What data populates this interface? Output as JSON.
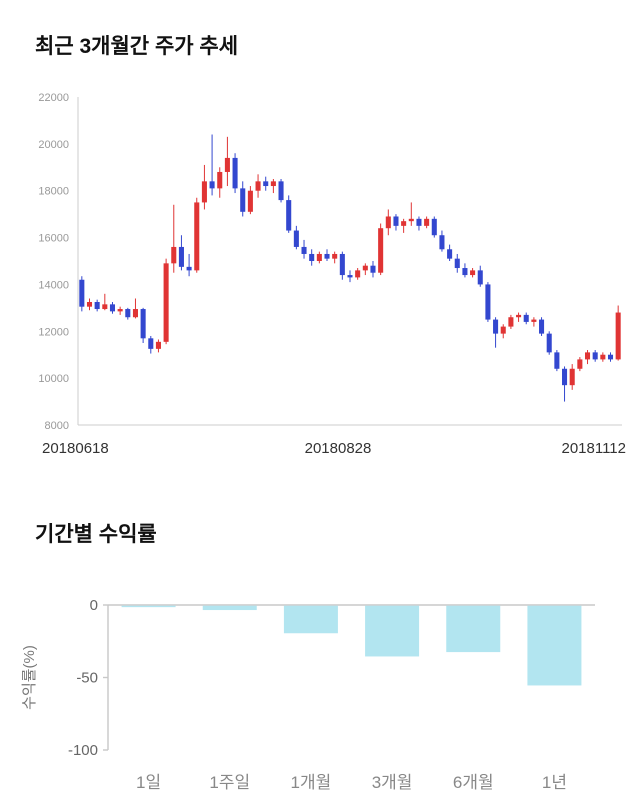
{
  "chart_data": [
    {
      "type": "candlestick",
      "title": "최근 3개월간 주가 추세",
      "ylim": [
        8000,
        22000
      ],
      "y_ticks": [
        22000,
        20000,
        18000,
        16000,
        14000,
        12000,
        10000,
        8000
      ],
      "x_tick_labels": [
        "20180618",
        "20180828",
        "20181112"
      ],
      "up_color": "#e03434",
      "down_color": "#3347cf",
      "axis_color": "#cccccc",
      "tick_text_color": "#999999",
      "date_text_color": "#333333",
      "candles": [
        [
          14200,
          14350,
          12850,
          13050
        ],
        [
          13050,
          13400,
          12900,
          13250
        ],
        [
          13250,
          13350,
          12850,
          12950
        ],
        [
          12950,
          13600,
          12900,
          13150
        ],
        [
          13150,
          13250,
          12750,
          12850
        ],
        [
          12850,
          13050,
          12700,
          12950
        ],
        [
          12950,
          13000,
          12500,
          12600
        ],
        [
          12600,
          13400,
          12550,
          12950
        ],
        [
          12950,
          13000,
          11500,
          11700
        ],
        [
          11700,
          11800,
          11050,
          11250
        ],
        [
          11250,
          11650,
          11100,
          11550
        ],
        [
          11550,
          15100,
          11450,
          14900
        ],
        [
          14900,
          17400,
          14500,
          15600
        ],
        [
          15600,
          16100,
          14600,
          14750
        ],
        [
          14750,
          15300,
          14350,
          14600
        ],
        [
          14600,
          17700,
          14500,
          17500
        ],
        [
          17500,
          19100,
          17200,
          18400
        ],
        [
          18400,
          20400,
          17800,
          18100
        ],
        [
          18100,
          19000,
          17700,
          18800
        ],
        [
          18800,
          20300,
          18200,
          19400
        ],
        [
          19400,
          19600,
          17900,
          18100
        ],
        [
          18100,
          18400,
          16900,
          17100
        ],
        [
          17100,
          18200,
          17000,
          18000
        ],
        [
          18000,
          18700,
          17700,
          18400
        ],
        [
          18400,
          18600,
          18000,
          18200
        ],
        [
          18200,
          18500,
          17900,
          18400
        ],
        [
          18400,
          18500,
          17500,
          17600
        ],
        [
          17600,
          17800,
          16200,
          16300
        ],
        [
          16300,
          16500,
          15500,
          15600
        ],
        [
          15600,
          15900,
          15100,
          15300
        ],
        [
          15300,
          15500,
          14800,
          15000
        ],
        [
          15000,
          15400,
          14900,
          15300
        ],
        [
          15300,
          15500,
          15000,
          15100
        ],
        [
          15100,
          15400,
          14900,
          15300
        ],
        [
          15300,
          15400,
          14200,
          14400
        ],
        [
          14400,
          14600,
          14100,
          14300
        ],
        [
          14300,
          14700,
          14200,
          14600
        ],
        [
          14600,
          14900,
          14400,
          14800
        ],
        [
          14800,
          15000,
          14300,
          14500
        ],
        [
          14500,
          16600,
          14400,
          16400
        ],
        [
          16400,
          17200,
          16100,
          16900
        ],
        [
          16900,
          17000,
          16300,
          16500
        ],
        [
          16500,
          16800,
          16200,
          16700
        ],
        [
          16700,
          17500,
          16500,
          16800
        ],
        [
          16800,
          16900,
          16300,
          16500
        ],
        [
          16500,
          16900,
          16400,
          16800
        ],
        [
          16800,
          16900,
          16000,
          16100
        ],
        [
          16100,
          16300,
          15400,
          15500
        ],
        [
          15500,
          15700,
          15000,
          15100
        ],
        [
          15100,
          15300,
          14500,
          14700
        ],
        [
          14700,
          14900,
          14300,
          14400
        ],
        [
          14400,
          14700,
          14300,
          14600
        ],
        [
          14600,
          14800,
          13900,
          14000
        ],
        [
          14000,
          14100,
          12400,
          12500
        ],
        [
          12500,
          12600,
          11300,
          11900
        ],
        [
          11900,
          12300,
          11700,
          12200
        ],
        [
          12200,
          12700,
          12100,
          12600
        ],
        [
          12600,
          12800,
          12400,
          12700
        ],
        [
          12700,
          12800,
          12300,
          12400
        ],
        [
          12400,
          12600,
          12200,
          12500
        ],
        [
          12500,
          12600,
          11800,
          11900
        ],
        [
          11900,
          12000,
          11000,
          11100
        ],
        [
          11100,
          11200,
          10300,
          10400
        ],
        [
          10400,
          10500,
          9000,
          9700
        ],
        [
          9700,
          10600,
          9500,
          10400
        ],
        [
          10400,
          10900,
          10300,
          10800
        ],
        [
          10800,
          11200,
          10600,
          11100
        ],
        [
          11100,
          11200,
          10700,
          10800
        ],
        [
          10800,
          11100,
          10700,
          11000
        ],
        [
          11000,
          11100,
          10700,
          10800
        ],
        [
          10800,
          13100,
          10750,
          12800
        ]
      ]
    },
    {
      "type": "bar",
      "title": "기간별 수익률",
      "ylabel": "수익률(%)",
      "categories": [
        "1일",
        "1주일",
        "1개월",
        "3개월",
        "6개월",
        "1년"
      ],
      "values": [
        -1,
        -3,
        -19,
        -35,
        -32,
        -55
      ],
      "ylim": [
        -100,
        0
      ],
      "y_ticks": [
        0,
        -50,
        -100
      ],
      "bar_color": "#b2e5f0",
      "axis_color": "#c8c8c8",
      "tick_text_color": "#666666",
      "category_text_color": "#888888",
      "ylabel_color": "#777777"
    }
  ]
}
